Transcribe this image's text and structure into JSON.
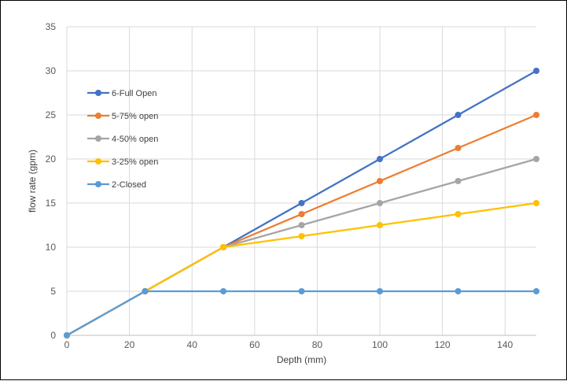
{
  "chart_data": {
    "type": "line",
    "xlabel": "Depth (mm)",
    "ylabel": "flow rate (gpm)",
    "xlim": [
      0,
      150
    ],
    "ylim": [
      0,
      35
    ],
    "x_ticks": [
      "0",
      "20",
      "40",
      "60",
      "80",
      "100",
      "120",
      "140"
    ],
    "y_ticks": [
      "0",
      "5",
      "10",
      "15",
      "20",
      "25",
      "30",
      "35"
    ],
    "grid": true,
    "legend_position": "top-left",
    "x": [
      0,
      25,
      50,
      75,
      100,
      125,
      150
    ],
    "series": [
      {
        "name": "6-Full Open",
        "color": "#4472C4",
        "values": [
          0,
          5,
          10,
          15,
          20,
          25,
          30
        ]
      },
      {
        "name": "5-75% open",
        "color": "#ED7D31",
        "values": [
          0,
          5,
          10,
          13.75,
          17.5,
          21.25,
          25
        ]
      },
      {
        "name": "4-50% open",
        "color": "#A5A5A5",
        "values": [
          0,
          5,
          10,
          12.5,
          15,
          17.5,
          20
        ]
      },
      {
        "name": "3-25% open",
        "color": "#FFC000",
        "values": [
          0,
          5,
          10,
          11.25,
          12.5,
          13.75,
          15
        ]
      },
      {
        "name": "2-Closed",
        "color": "#5B9BD5",
        "values": [
          0,
          5,
          5,
          5,
          5,
          5,
          5
        ]
      }
    ]
  }
}
